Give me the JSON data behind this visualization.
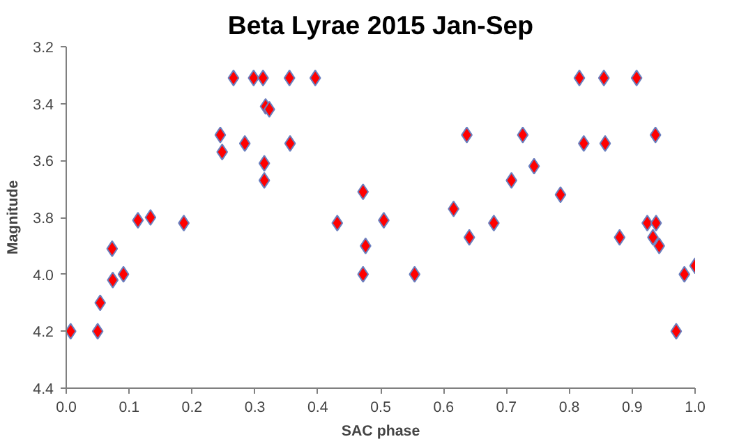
{
  "chart_data": {
    "type": "scatter",
    "title": "Beta Lyrae 2015 Jan-Sep",
    "xlabel": "SAC phase",
    "ylabel": "Magnitude",
    "x": [
      0.007,
      0.05,
      0.054,
      0.073,
      0.074,
      0.091,
      0.114,
      0.134,
      0.187,
      0.245,
      0.248,
      0.266,
      0.284,
      0.298,
      0.313,
      0.317,
      0.323,
      0.315,
      0.315,
      0.355,
      0.356,
      0.396,
      0.431,
      0.472,
      0.476,
      0.472,
      0.505,
      0.554,
      0.616,
      0.637,
      0.641,
      0.68,
      0.708,
      0.726,
      0.744,
      0.786,
      0.816,
      0.823,
      0.855,
      0.857,
      0.88,
      0.907,
      0.924,
      0.938,
      0.937,
      0.933,
      0.943,
      0.97,
      0.983,
      1.0
    ],
    "series": [
      {
        "color": "#ff0000",
        "values": [
          4.2,
          4.2,
          4.1,
          3.91,
          4.02,
          4.0,
          3.81,
          3.8,
          3.82,
          3.51,
          3.57,
          3.31,
          3.54,
          3.31,
          3.31,
          3.41,
          3.42,
          3.61,
          3.67,
          3.31,
          3.54,
          3.31,
          3.82,
          3.71,
          3.9,
          4.0,
          3.81,
          4.0,
          3.77,
          3.51,
          3.87,
          3.82,
          3.67,
          3.51,
          3.62,
          3.72,
          3.31,
          3.54,
          3.31,
          3.54,
          3.87,
          3.31,
          3.82,
          3.82,
          3.51,
          3.87,
          3.9,
          4.2,
          4.0,
          3.97
        ]
      }
    ],
    "xlim": [
      0,
      1
    ],
    "ylim": [
      4.4,
      3.2
    ],
    "xticks": [
      {
        "value": 0,
        "label": "0.0"
      },
      0.1,
      0.2,
      0.3,
      0.4,
      0.5,
      0.6,
      0.7,
      0.8,
      0.9,
      {
        "value": 1,
        "label": "1.0"
      }
    ],
    "yticks": [
      3.2,
      3.4,
      3.6,
      3.8,
      {
        "value": 4,
        "label": "4.0"
      },
      4.2,
      4.4
    ],
    "marker": "diamond",
    "grid": false
  }
}
